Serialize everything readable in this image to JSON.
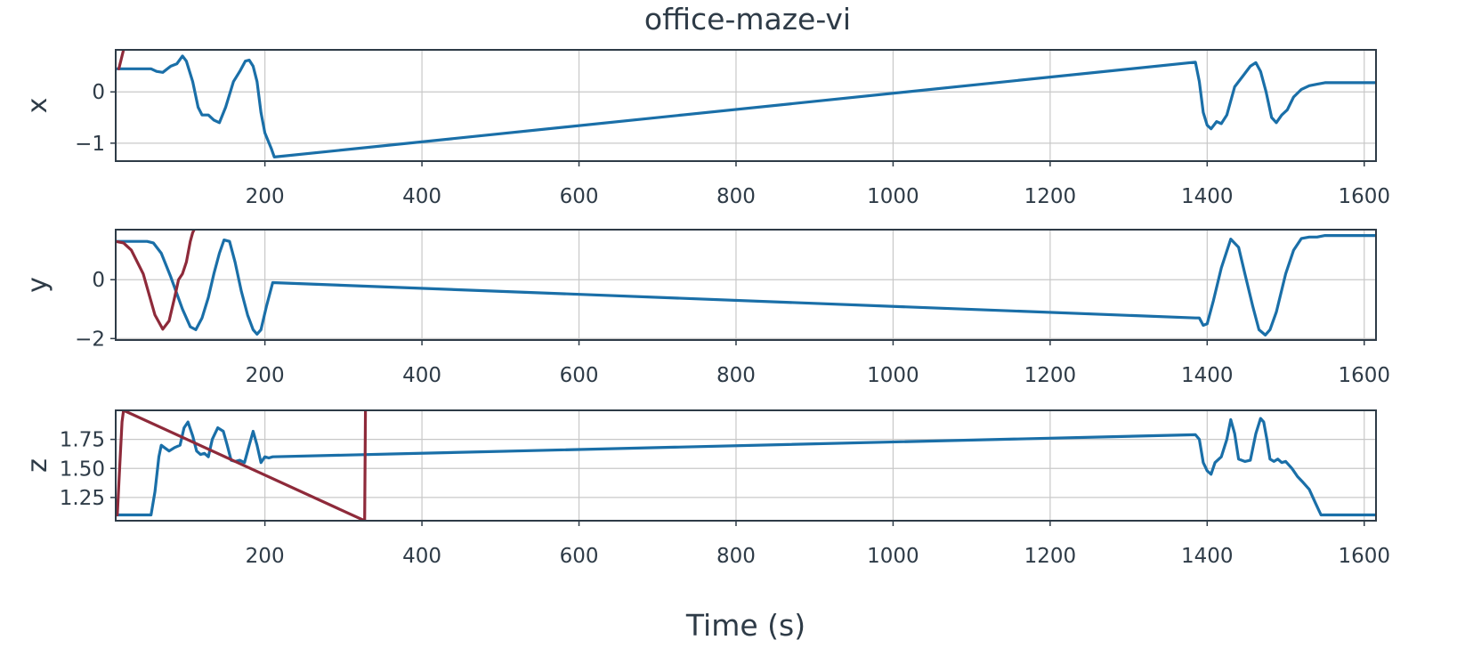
{
  "chart_data": {
    "type": "line",
    "title": "office-maze-vi",
    "xlabel": "Time (s)",
    "xlim": [
      10,
      1615
    ],
    "xticks": [
      200,
      400,
      600,
      800,
      1000,
      1200,
      1400,
      1600
    ],
    "colors": {
      "primary": "#1a6fa8",
      "secondary": "#8e2a3a"
    },
    "subplots": [
      {
        "ylabel": "x",
        "ylim": [
          -1.35,
          0.82
        ],
        "yticks": [
          -1,
          0
        ],
        "series": [
          {
            "color": "#1a6fa8",
            "x": [
              10,
              55,
              62,
              70,
              80,
              88,
              95,
              100,
              108,
              115,
              120,
              128,
              135,
              142,
              150,
              160,
              168,
              175,
              180,
              185,
              190,
              195,
              200,
              208,
              212,
              1385,
              1390,
              1395,
              1400,
              1405,
              1412,
              1418,
              1425,
              1435,
              1445,
              1455,
              1462,
              1468,
              1475,
              1482,
              1488,
              1495,
              1502,
              1510,
              1520,
              1530,
              1540,
              1550,
              1560,
              1615
            ],
            "y": [
              0.45,
              0.45,
              0.4,
              0.38,
              0.5,
              0.55,
              0.7,
              0.6,
              0.2,
              -0.3,
              -0.45,
              -0.45,
              -0.55,
              -0.6,
              -0.3,
              0.2,
              0.4,
              0.6,
              0.62,
              0.5,
              0.2,
              -0.4,
              -0.8,
              -1.1,
              -1.27,
              0.58,
              0.2,
              -0.4,
              -0.65,
              -0.72,
              -0.58,
              -0.62,
              -0.45,
              0.1,
              0.3,
              0.5,
              0.57,
              0.4,
              0.0,
              -0.5,
              -0.6,
              -0.45,
              -0.35,
              -0.1,
              0.05,
              0.12,
              0.15,
              0.18,
              0.18,
              0.18
            ]
          },
          {
            "color": "#8e2a3a",
            "x": [
              14,
              18,
              20
            ],
            "y": [
              0.45,
              0.7,
              0.82
            ]
          }
        ]
      },
      {
        "ylabel": "y",
        "ylim": [
          -2.05,
          1.7
        ],
        "yticks": [
          -2,
          0
        ],
        "series": [
          {
            "color": "#1a6fa8",
            "x": [
              10,
              50,
              58,
              68,
              80,
              95,
              105,
              112,
              120,
              128,
              135,
              142,
              148,
              155,
              162,
              170,
              178,
              185,
              190,
              195,
              202,
              210,
              1385,
              1390,
              1395,
              1400,
              1408,
              1418,
              1430,
              1440,
              1448,
              1458,
              1466,
              1474,
              1480,
              1488,
              1500,
              1510,
              1520,
              1530,
              1540,
              1550,
              1615
            ],
            "y": [
              1.3,
              1.3,
              1.25,
              0.9,
              0.1,
              -1.0,
              -1.6,
              -1.7,
              -1.3,
              -0.6,
              0.2,
              0.9,
              1.35,
              1.3,
              0.6,
              -0.4,
              -1.2,
              -1.7,
              -1.85,
              -1.7,
              -0.9,
              -0.1,
              -1.3,
              -1.3,
              -1.55,
              -1.5,
              -0.7,
              0.4,
              1.38,
              1.1,
              0.2,
              -0.9,
              -1.7,
              -1.88,
              -1.7,
              -1.1,
              0.2,
              1.0,
              1.4,
              1.45,
              1.45,
              1.5,
              1.5
            ]
          },
          {
            "color": "#8e2a3a",
            "x": [
              10,
              20,
              30,
              45,
              60,
              70,
              78,
              85,
              90,
              95,
              100,
              105,
              108,
              110
            ],
            "y": [
              1.3,
              1.25,
              1.0,
              0.2,
              -1.2,
              -1.68,
              -1.4,
              -0.6,
              0.0,
              0.2,
              0.6,
              1.3,
              1.6,
              1.7
            ]
          }
        ]
      },
      {
        "ylabel": "z",
        "ylim": [
          1.05,
          2.0
        ],
        "yticks": [
          1.25,
          1.5,
          1.75
        ],
        "series": [
          {
            "color": "#1a6fa8",
            "x": [
              10,
              55,
              60,
              65,
              68,
              72,
              78,
              85,
              92,
              97,
              102,
              108,
              113,
              118,
              123,
              128,
              133,
              140,
              147,
              152,
              157,
              162,
              168,
              174,
              180,
              185,
              190,
              195,
              200,
              205,
              210,
              1385,
              1390,
              1395,
              1400,
              1405,
              1410,
              1418,
              1425,
              1430,
              1435,
              1440,
              1448,
              1455,
              1462,
              1468,
              1472,
              1476,
              1480,
              1485,
              1490,
              1495,
              1500,
              1508,
              1515,
              1522,
              1530,
              1538,
              1545,
              1550,
              1615
            ],
            "y": [
              1.1,
              1.1,
              1.3,
              1.6,
              1.7,
              1.68,
              1.65,
              1.68,
              1.7,
              1.85,
              1.9,
              1.78,
              1.65,
              1.62,
              1.63,
              1.6,
              1.75,
              1.85,
              1.82,
              1.7,
              1.57,
              1.56,
              1.57,
              1.55,
              1.7,
              1.82,
              1.7,
              1.55,
              1.6,
              1.59,
              1.6,
              1.79,
              1.75,
              1.55,
              1.48,
              1.45,
              1.55,
              1.6,
              1.75,
              1.92,
              1.8,
              1.58,
              1.56,
              1.57,
              1.8,
              1.93,
              1.9,
              1.75,
              1.58,
              1.56,
              1.58,
              1.55,
              1.56,
              1.5,
              1.43,
              1.38,
              1.32,
              1.2,
              1.1,
              1.1,
              1.1
            ]
          },
          {
            "color": "#8e2a3a",
            "x": [
              12,
              15,
              18,
              20,
              327,
              328
            ],
            "y": [
              1.1,
              1.5,
              1.9,
              2.0,
              1.05,
              2.0
            ]
          }
        ]
      }
    ]
  }
}
